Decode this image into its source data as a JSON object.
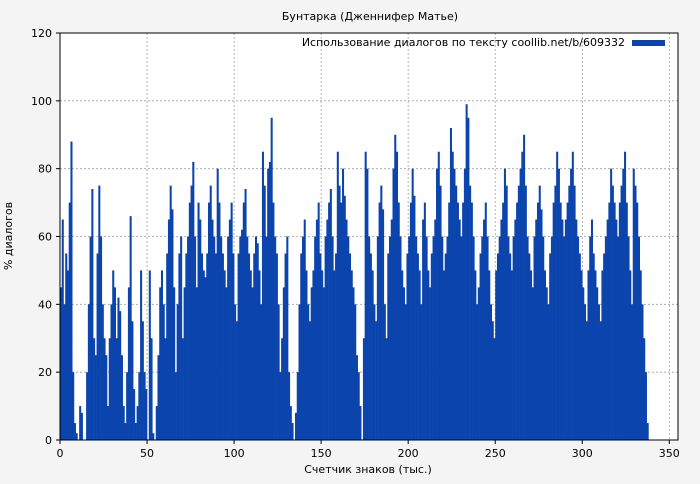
{
  "chart_data": {
    "type": "bar",
    "title": "Бунтарка (Дженнифер Матье)",
    "xlabel": "Счетчик знаков (тыс.)",
    "ylabel": "% диалогов",
    "xlim": [
      0,
      355
    ],
    "ylim": [
      0,
      120
    ],
    "xticks": [
      0,
      50,
      100,
      150,
      200,
      250,
      300,
      350
    ],
    "yticks": [
      0,
      20,
      40,
      60,
      80,
      100,
      120
    ],
    "grid": true,
    "legend_position": "top-right",
    "series": [
      {
        "name": "Использование диалогов по тексту coollib.net/b/609332",
        "color": "#0a44ac",
        "x_start": 0,
        "x_step": 1,
        "values": [
          45,
          65,
          40,
          55,
          50,
          70,
          88,
          20,
          5,
          2,
          0,
          10,
          8,
          0,
          0,
          20,
          40,
          60,
          74,
          30,
          25,
          55,
          75,
          60,
          40,
          30,
          25,
          10,
          30,
          40,
          50,
          45,
          30,
          42,
          38,
          25,
          10,
          5,
          20,
          45,
          66,
          35,
          15,
          5,
          10,
          20,
          50,
          35,
          20,
          15,
          0,
          50,
          30,
          2,
          0,
          10,
          25,
          45,
          50,
          40,
          30,
          55,
          65,
          75,
          68,
          45,
          20,
          40,
          55,
          60,
          30,
          45,
          55,
          60,
          70,
          75,
          82,
          60,
          45,
          70,
          65,
          55,
          50,
          48,
          55,
          70,
          75,
          65,
          60,
          55,
          80,
          70,
          60,
          55,
          50,
          45,
          60,
          65,
          70,
          55,
          40,
          35,
          55,
          60,
          62,
          70,
          74,
          60,
          55,
          50,
          45,
          55,
          60,
          58,
          50,
          40,
          85,
          75,
          60,
          80,
          82,
          95,
          70,
          60,
          55,
          40,
          20,
          30,
          45,
          55,
          60,
          20,
          10,
          5,
          0,
          8,
          20,
          40,
          55,
          60,
          65,
          50,
          40,
          35,
          45,
          50,
          60,
          65,
          70,
          55,
          50,
          45,
          60,
          65,
          70,
          74,
          60,
          50,
          55,
          85,
          75,
          70,
          80,
          72,
          65,
          60,
          55,
          50,
          45,
          40,
          25,
          20,
          10,
          0,
          30,
          85,
          80,
          60,
          55,
          50,
          40,
          35,
          60,
          70,
          75,
          68,
          40,
          30,
          55,
          60,
          65,
          80,
          90,
          85,
          70,
          60,
          50,
          45,
          40,
          55,
          60,
          70,
          80,
          72,
          60,
          55,
          50,
          40,
          65,
          70,
          60,
          50,
          45,
          55,
          60,
          65,
          80,
          85,
          75,
          60,
          50,
          55,
          60,
          70,
          92,
          85,
          80,
          75,
          70,
          65,
          60,
          70,
          80,
          99,
          95,
          75,
          70,
          60,
          50,
          40,
          45,
          55,
          60,
          65,
          70,
          60,
          50,
          40,
          35,
          30,
          50,
          55,
          60,
          65,
          70,
          80,
          75,
          60,
          55,
          50,
          60,
          65,
          70,
          75,
          80,
          85,
          90,
          75,
          60,
          55,
          50,
          45,
          60,
          65,
          70,
          75,
          68,
          60,
          50,
          45,
          40,
          55,
          60,
          70,
          75,
          85,
          80,
          70,
          65,
          60,
          65,
          70,
          75,
          80,
          85,
          75,
          65,
          60,
          55,
          50,
          45,
          40,
          35,
          50,
          60,
          65,
          55,
          50,
          45,
          40,
          35,
          50,
          55,
          60,
          65,
          70,
          80,
          75,
          70,
          65,
          60,
          70,
          75,
          80,
          85,
          70,
          60,
          50,
          40,
          80,
          75,
          70,
          60,
          50,
          40,
          30,
          20,
          5
        ]
      }
    ]
  }
}
